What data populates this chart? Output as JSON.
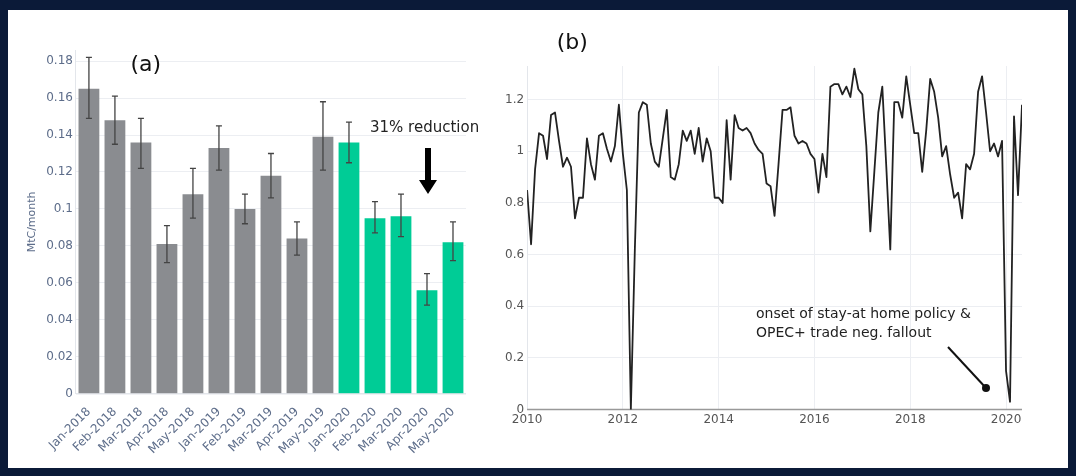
{
  "chart_data": [
    {
      "type": "bar",
      "title": "(a)",
      "ylabel": "MtC/month",
      "categories": [
        "Jan-2018",
        "Feb-2018",
        "Mar-2018",
        "Apr-2018",
        "May-2018",
        "Jan-2019",
        "Feb-2019",
        "Mar-2019",
        "Apr-2019",
        "May-2019",
        "Jan-2020",
        "Feb-2020",
        "Mar-2020",
        "Apr-2020",
        "May-2020"
      ],
      "values": [
        0.165,
        0.148,
        0.136,
        0.081,
        0.108,
        0.133,
        0.1,
        0.118,
        0.084,
        0.139,
        0.136,
        0.095,
        0.096,
        0.056,
        0.082
      ],
      "errors": [
        [
          0.149,
          0.182
        ],
        [
          0.135,
          0.161
        ],
        [
          0.122,
          0.149
        ],
        [
          0.071,
          0.091
        ],
        [
          0.095,
          0.122
        ],
        [
          0.121,
          0.145
        ],
        [
          0.092,
          0.108
        ],
        [
          0.106,
          0.13
        ],
        [
          0.075,
          0.093
        ],
        [
          0.121,
          0.158
        ],
        [
          0.125,
          0.147
        ],
        [
          0.087,
          0.104
        ],
        [
          0.085,
          0.108
        ],
        [
          0.048,
          0.065
        ],
        [
          0.072,
          0.093
        ]
      ],
      "colors": [
        "#8a8c90",
        "#8a8c90",
        "#8a8c90",
        "#8a8c90",
        "#8a8c90",
        "#8a8c90",
        "#8a8c90",
        "#8a8c90",
        "#8a8c90",
        "#8a8c90",
        "#00cc96",
        "#00cc96",
        "#00cc96",
        "#00cc96",
        "#00cc96"
      ],
      "ylim": [
        0,
        0.186
      ],
      "yticks": [
        0,
        0.02,
        0.04,
        0.06,
        0.08,
        0.1,
        0.12,
        0.14,
        0.16,
        0.18
      ],
      "grid": "y",
      "annotations": [
        "31% reduction"
      ]
    },
    {
      "type": "line",
      "title": "(b)",
      "color": "#222222",
      "line_style": "solid",
      "x": [
        "2010-01",
        "2010-02",
        "2010-03",
        "2010-04",
        "2010-05",
        "2010-06",
        "2010-07",
        "2010-08",
        "2010-09",
        "2010-10",
        "2010-11",
        "2010-12",
        "2011-01",
        "2011-02",
        "2011-03",
        "2011-04",
        "2011-05",
        "2011-06",
        "2011-07",
        "2011-08",
        "2011-09",
        "2011-10",
        "2011-11",
        "2011-12",
        "2012-01",
        "2012-02",
        "2012-03",
        "2012-04",
        "2012-05",
        "2012-06",
        "2012-07",
        "2012-08",
        "2012-09",
        "2012-10",
        "2012-11",
        "2012-12",
        "2013-01",
        "2013-02",
        "2013-03",
        "2013-04",
        "2013-05",
        "2013-06",
        "2013-07",
        "2013-08",
        "2013-09",
        "2013-10",
        "2013-11",
        "2013-12",
        "2014-01",
        "2014-02",
        "2014-03",
        "2014-04",
        "2014-05",
        "2014-06",
        "2014-07",
        "2014-08",
        "2014-09",
        "2014-10",
        "2014-11",
        "2014-12",
        "2015-01",
        "2015-02",
        "2015-03",
        "2015-04",
        "2015-05",
        "2015-06",
        "2015-07",
        "2015-08",
        "2015-09",
        "2015-10",
        "2015-11",
        "2015-12",
        "2016-01",
        "2016-02",
        "2016-03",
        "2016-04",
        "2016-05",
        "2016-06",
        "2016-07",
        "2016-08",
        "2016-09",
        "2016-10",
        "2016-11",
        "2016-12",
        "2017-01",
        "2017-02",
        "2017-03",
        "2017-04",
        "2017-05",
        "2017-06",
        "2017-07",
        "2017-08",
        "2017-09",
        "2017-10",
        "2017-11",
        "2017-12",
        "2018-01",
        "2018-02",
        "2018-03",
        "2018-04",
        "2018-05",
        "2018-06",
        "2018-07",
        "2018-08",
        "2018-09",
        "2018-10",
        "2018-11",
        "2018-12",
        "2019-01",
        "2019-02",
        "2019-03",
        "2019-04",
        "2019-05",
        "2019-06",
        "2019-07",
        "2019-08",
        "2019-09",
        "2019-10",
        "2019-11",
        "2019-12",
        "2020-01",
        "2020-02",
        "2020-03",
        "2020-04",
        "2020-05"
      ],
      "values": [
        0.85,
        0.64,
        0.93,
        1.07,
        1.06,
        0.97,
        1.14,
        1.15,
        1.04,
        0.94,
        0.975,
        0.94,
        0.74,
        0.82,
        0.82,
        1.05,
        0.95,
        0.89,
        1.06,
        1.07,
        1.01,
        0.96,
        1.02,
        1.18,
        0.99,
        0.85,
        0,
        0.62,
        1.15,
        1.19,
        1.18,
        1.03,
        0.96,
        0.94,
        1.05,
        1.16,
        0.9,
        0.89,
        0.95,
        1.08,
        1.04,
        1.08,
        0.99,
        1.09,
        0.96,
        1.05,
        1,
        0.82,
        0.82,
        0.8,
        1.12,
        0.89,
        1.14,
        1.09,
        1.08,
        1.09,
        1.07,
        1.03,
        1.005,
        0.99,
        0.875,
        0.865,
        0.75,
        0.95,
        1.16,
        1.16,
        1.17,
        1.06,
        1.03,
        1.04,
        1.03,
        0.99,
        0.97,
        0.84,
        0.99,
        0.9,
        1.25,
        1.26,
        1.26,
        1.22,
        1.25,
        1.21,
        1.32,
        1.24,
        1.22,
        1.02,
        0.69,
        0.92,
        1.15,
        1.25,
        0.94,
        0.62,
        1.19,
        1.19,
        1.13,
        1.29,
        1.18,
        1.07,
        1.07,
        0.92,
        1.08,
        1.28,
        1.23,
        1.13,
        0.98,
        1.02,
        0.91,
        0.82,
        0.84,
        0.74,
        0.95,
        0.93,
        0.99,
        1.23,
        1.29,
        1.15,
        1,
        1.03,
        0.98,
        1.04,
        0.15,
        0.03,
        1.135,
        0.83,
        1.18
      ],
      "xlim": [
        "2010-01",
        "2020-05"
      ],
      "xticks": [
        "2010",
        "2012",
        "2014",
        "2016",
        "2018",
        "2020"
      ],
      "ylim": [
        0,
        1.33
      ],
      "yticks": [
        0,
        0.2,
        0.4,
        0.6,
        0.8,
        1,
        1.2
      ],
      "grid": true,
      "annotations": [
        "onset of stay-at home policy & OPEC+ trade neg. fallout"
      ]
    }
  ]
}
